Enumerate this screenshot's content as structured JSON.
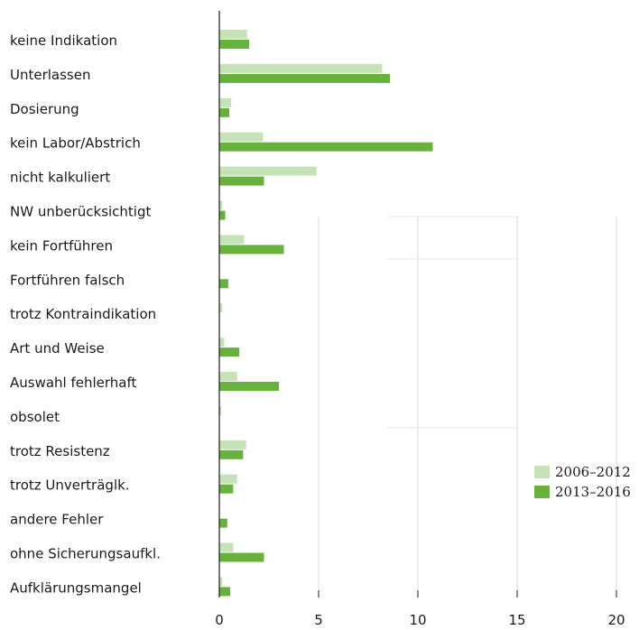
{
  "chart_data": {
    "type": "bar",
    "orientation": "horizontal",
    "categories": [
      "keine Indikation",
      "Unterlassen",
      "Dosierung",
      "kein Labor/Abstrich",
      "nicht kalkuliert",
      "NW unberücksichtigt",
      "kein Fortführen",
      "Fortführen falsch",
      "trotz Kontraindikation",
      "Art und Weise",
      "Auswahl fehlerhaft",
      "obsolet",
      "trotz Resistenz",
      "trotz Unverträglk.",
      "andere Fehler",
      "ohne Sicherungsaufkl.",
      "Aufklärungsmangel"
    ],
    "series": [
      {
        "name": "2006–2012",
        "color": "#c5e3b6",
        "values": [
          1.4,
          8.2,
          0.6,
          2.2,
          4.9,
          0.15,
          1.25,
          0,
          0.15,
          0.25,
          0.9,
          0.1,
          1.35,
          0.9,
          0,
          0.7,
          0.15
        ]
      },
      {
        "name": "2013–2016",
        "color": "#66b23c",
        "values": [
          1.5,
          8.6,
          0.5,
          10.75,
          2.25,
          0.3,
          3.25,
          0.45,
          0,
          1.0,
          3.0,
          0,
          1.2,
          0.7,
          0.4,
          2.25,
          0.55
        ]
      }
    ],
    "xlim": [
      0,
      20
    ],
    "xticks": [
      0,
      5,
      10,
      15,
      20
    ],
    "grid": "vertical-at-ticks",
    "legend_position": "right"
  }
}
